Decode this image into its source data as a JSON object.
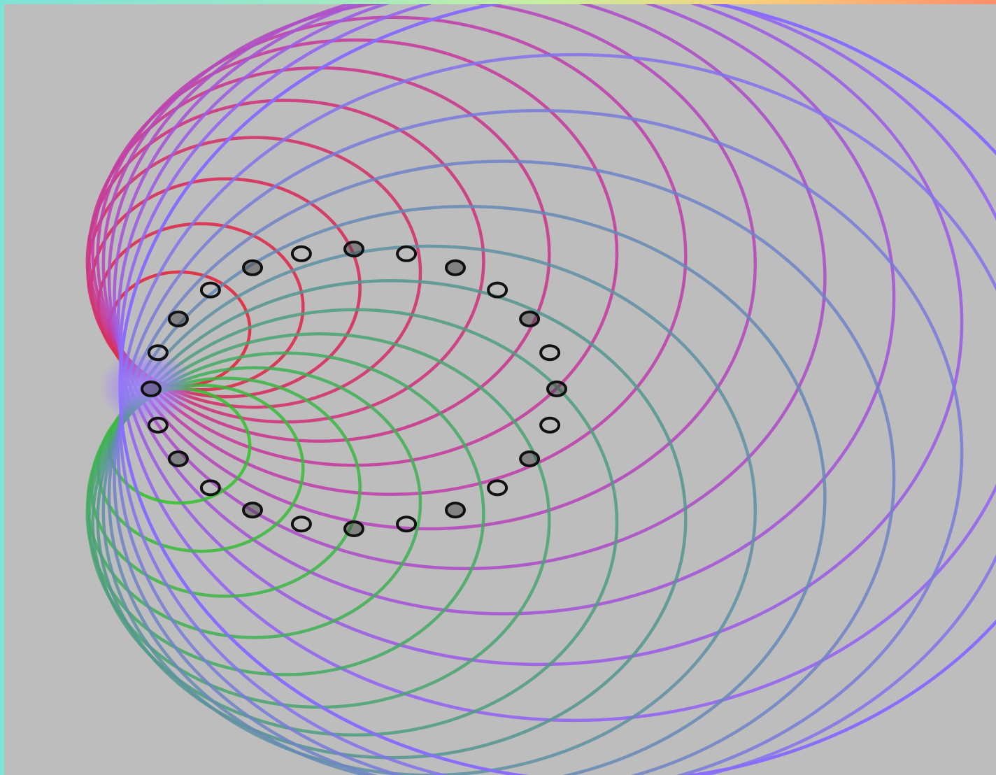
{
  "diagram": {
    "kind": "cardioid-circle-envelope",
    "background_color": "#bebdbd",
    "frame_colors": [
      "#7de3d6",
      "#c8f0a0",
      "#f7d27a",
      "#ff8c6a"
    ],
    "circle_count": 14,
    "marker_count": 24,
    "palette": {
      "upper_start": "#e0283c",
      "upper_mid": "#c23fa6",
      "upper_end": "#8a6cff",
      "lower_start": "#33c22a",
      "lower_mid": "#4f9b86",
      "lower_end": "#8a6cff",
      "marker_stroke": "#111111",
      "glow": "#9b7cff"
    },
    "markers_filled_alternate": true
  }
}
